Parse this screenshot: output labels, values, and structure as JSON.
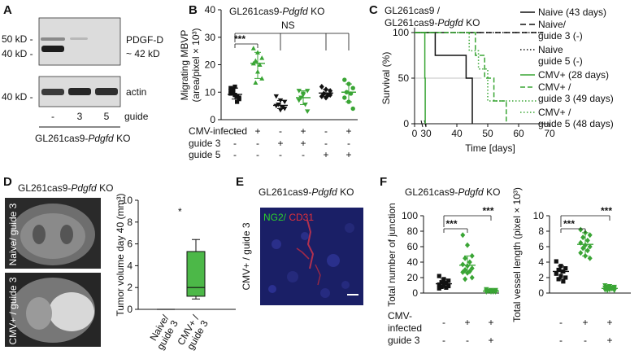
{
  "panels": {
    "A": {
      "letter": "A",
      "blot_labels": [
        "50 kD -",
        "40 kD -",
        "40 kD -"
      ],
      "band_labels": [
        "PDGF-D",
        "~ 42 kD",
        "actin"
      ],
      "lanes": [
        "-",
        "3",
        "5"
      ],
      "lane_axis_label": "guide",
      "cell_line_prefix": "GL261cas9-",
      "cell_line_gene": "Pdgfd",
      "cell_line_suffix": " KO"
    },
    "B": {
      "letter": "B",
      "title_prefix": "GL261cas9-",
      "title_gene": "Pdgfd",
      "title_suffix": " KO",
      "sig": [
        "***",
        "NS"
      ],
      "row_labels": [
        "CMV-infected",
        "guide 3",
        "guide 5"
      ],
      "row_signs": [
        [
          "-",
          "+",
          "-",
          "+",
          "-",
          "+"
        ],
        [
          "-",
          "-",
          "+",
          "+",
          "-",
          "-"
        ],
        [
          "-",
          "-",
          "-",
          "-",
          "+",
          "+"
        ]
      ]
    },
    "C": {
      "letter": "C",
      "title_line1": "GL261cas9 /",
      "title_line2_prefix": "GL261cas9-",
      "title_line2_gene": "Pdgfd",
      "title_line2_suffix": " KO",
      "legend": [
        [
          "Naive (43 days)"
        ],
        [
          "Naive/",
          "guide 3 (-)"
        ],
        [
          "Naive",
          "guide 5 (-)"
        ],
        [
          "CMV+ (28 days)"
        ],
        [
          "CMV+ /",
          "guide 3 (49 days)"
        ],
        [
          "CMV+ /",
          "guide 5 (48 days)"
        ]
      ]
    },
    "D": {
      "letter": "D",
      "title_prefix": "GL261cas9-",
      "title_gene": "Pdgfd",
      "title_suffix": " KO",
      "mri_labels": [
        "Naive/ guide 3",
        "CMV+ / guide 3"
      ],
      "sig": "*",
      "xcats": [
        [
          "Naive/",
          "guide 3"
        ],
        [
          "CMV+ /",
          "guide 3"
        ]
      ]
    },
    "E": {
      "letter": "E",
      "title_prefix": "GL261cas9-",
      "title_gene": "Pdgfd",
      "title_suffix": " KO",
      "stain_green": "NG2/",
      "stain_red": " CD31",
      "side_label": "CMV+ / guide 3"
    },
    "F": {
      "letter": "F",
      "title_prefix": "GL261cas9-",
      "title_gene": "Pdgfd",
      "title_suffix": " KO",
      "sig": "***",
      "row_labels": [
        "CMV-",
        "infected",
        "guide 3"
      ],
      "row_signs": [
        [
          "-",
          "+",
          "+"
        ],
        [
          "-",
          "-",
          "+"
        ]
      ]
    }
  },
  "colors": {
    "black": "#111111",
    "green": "#3aa535",
    "box_green": "#4cb848",
    "ng2": "#2ccf2c",
    "cd31": "#e0303a",
    "tissue": "#1a1f66"
  },
  "chart_data": [
    {
      "id": "B",
      "type": "scatter",
      "ylabel": "Migrating MBVP\n(area/pixel × 10³)",
      "yticks": [
        0,
        10,
        20,
        30,
        40
      ],
      "ylim": [
        0,
        40
      ],
      "series": [
        {
          "values": [
            10.5,
            9.0,
            7.5,
            11.0,
            8.5,
            9.5,
            12.0,
            8.0,
            10.0,
            6.5,
            11.5,
            9.0
          ],
          "mean": 9.2
        },
        {
          "values": [
            26.0,
            24.5,
            22.5,
            21.5,
            20.0,
            20.5,
            17.5,
            15.0,
            13.5
          ],
          "mean": 20.5
        },
        {
          "values": [
            8.5,
            7.0,
            6.5,
            5.5,
            4.5,
            5.0,
            3.5,
            4.0
          ],
          "mean": 5.2
        },
        {
          "values": [
            10.5,
            9.5,
            10.5,
            8.0,
            5.5,
            7.0,
            9.0,
            3.0
          ],
          "mean": 8.0
        },
        {
          "values": [
            12.0,
            11.0,
            10.5,
            9.5,
            9.0,
            8.5,
            8.0,
            9.0
          ],
          "mean": 9.7
        },
        {
          "values": [
            14.5,
            13.0,
            11.5,
            10.0,
            9.5,
            8.0,
            6.5,
            4.0
          ],
          "mean": 10.0
        }
      ]
    },
    {
      "id": "C",
      "type": "line",
      "ylabel": "Survival (%)",
      "xlabel": "Time [days]",
      "xticks": [
        0,
        30,
        40,
        50,
        60,
        70
      ],
      "yticks": [
        0,
        50,
        100
      ],
      "xlim": [
        0,
        70
      ],
      "ylim": [
        0,
        100
      ],
      "series": [
        {
          "style": "solid-black",
          "points": [
            [
              0,
              100
            ],
            [
              33,
              100
            ],
            [
              33,
              75
            ],
            [
              43,
              75
            ],
            [
              43,
              50
            ],
            [
              45,
              50
            ],
            [
              45,
              0
            ]
          ]
        },
        {
          "style": "dashed-black",
          "points": [
            [
              0,
              100
            ],
            [
              68,
              100
            ]
          ]
        },
        {
          "style": "dotted-black",
          "points": [
            [
              0,
              100
            ],
            [
              68,
              100
            ]
          ]
        },
        {
          "style": "solid-green",
          "points": [
            [
              0,
              100
            ],
            [
              27,
              100
            ],
            [
              27,
              50
            ],
            [
              28,
              50
            ],
            [
              28,
              0
            ]
          ]
        },
        {
          "style": "dashed-green",
          "points": [
            [
              0,
              100
            ],
            [
              46,
              100
            ],
            [
              46,
              75
            ],
            [
              49,
              75
            ],
            [
              49,
              50
            ],
            [
              52,
              50
            ],
            [
              52,
              25
            ],
            [
              56,
              25
            ],
            [
              56,
              0
            ]
          ]
        },
        {
          "style": "dotted-green",
          "points": [
            [
              0,
              100
            ],
            [
              44,
              100
            ],
            [
              44,
              80
            ],
            [
              47,
              80
            ],
            [
              47,
              60
            ],
            [
              50,
              60
            ],
            [
              50,
              25
            ],
            [
              66,
              25
            ]
          ]
        }
      ]
    },
    {
      "id": "D",
      "type": "box",
      "ylabel": "Tumor volume day 40 (mm³)",
      "yticks": [
        0,
        2,
        4,
        6,
        8,
        10
      ],
      "ylim": [
        0,
        10
      ],
      "boxes": [
        {
          "min": 0.0,
          "q1": 0.0,
          "median": 0.0,
          "q3": 0.0,
          "max": 0.0
        },
        {
          "min": 0.95,
          "q1": 1.2,
          "median": 2.0,
          "q3": 5.3,
          "max": 6.4
        }
      ]
    },
    {
      "id": "F1",
      "type": "scatter",
      "ylabel": "Total number of junction",
      "yticks": [
        0,
        20,
        40,
        60,
        80,
        100
      ],
      "ylim": [
        0,
        100
      ],
      "series": [
        {
          "values": [
            22,
            18,
            16,
            14,
            13,
            11,
            10,
            9,
            8,
            7,
            6
          ],
          "mean": 12.0
        },
        {
          "values": [
            75,
            62,
            48,
            45,
            40,
            37,
            35,
            32,
            30,
            28,
            27,
            26,
            20,
            18
          ],
          "mean": 36.0
        },
        {
          "values": [
            5,
            4,
            4,
            3,
            3,
            3,
            2,
            2,
            2,
            1,
            1,
            1,
            1
          ],
          "mean": 2.5
        }
      ]
    },
    {
      "id": "F2",
      "type": "scatter",
      "ylabel": "Total vessel length (pixel × 10³)",
      "yticks": [
        0,
        2,
        4,
        6,
        8,
        10
      ],
      "ylim": [
        0,
        10
      ],
      "series": [
        {
          "values": [
            4.1,
            3.5,
            3.2,
            3.0,
            2.8,
            2.5,
            2.2,
            2.0,
            1.8,
            1.5
          ],
          "mean": 2.8
        },
        {
          "values": [
            8.2,
            7.8,
            7.5,
            7.2,
            6.8,
            6.5,
            6.2,
            6.0,
            5.8,
            5.5,
            5.2,
            4.8,
            4.5
          ],
          "mean": 6.3
        },
        {
          "values": [
            1.0,
            0.9,
            0.8,
            0.8,
            0.7,
            0.7,
            0.6,
            0.6,
            0.5,
            0.5,
            0.4,
            0.4,
            0.3,
            0.3
          ],
          "mean": 0.6
        }
      ]
    }
  ]
}
